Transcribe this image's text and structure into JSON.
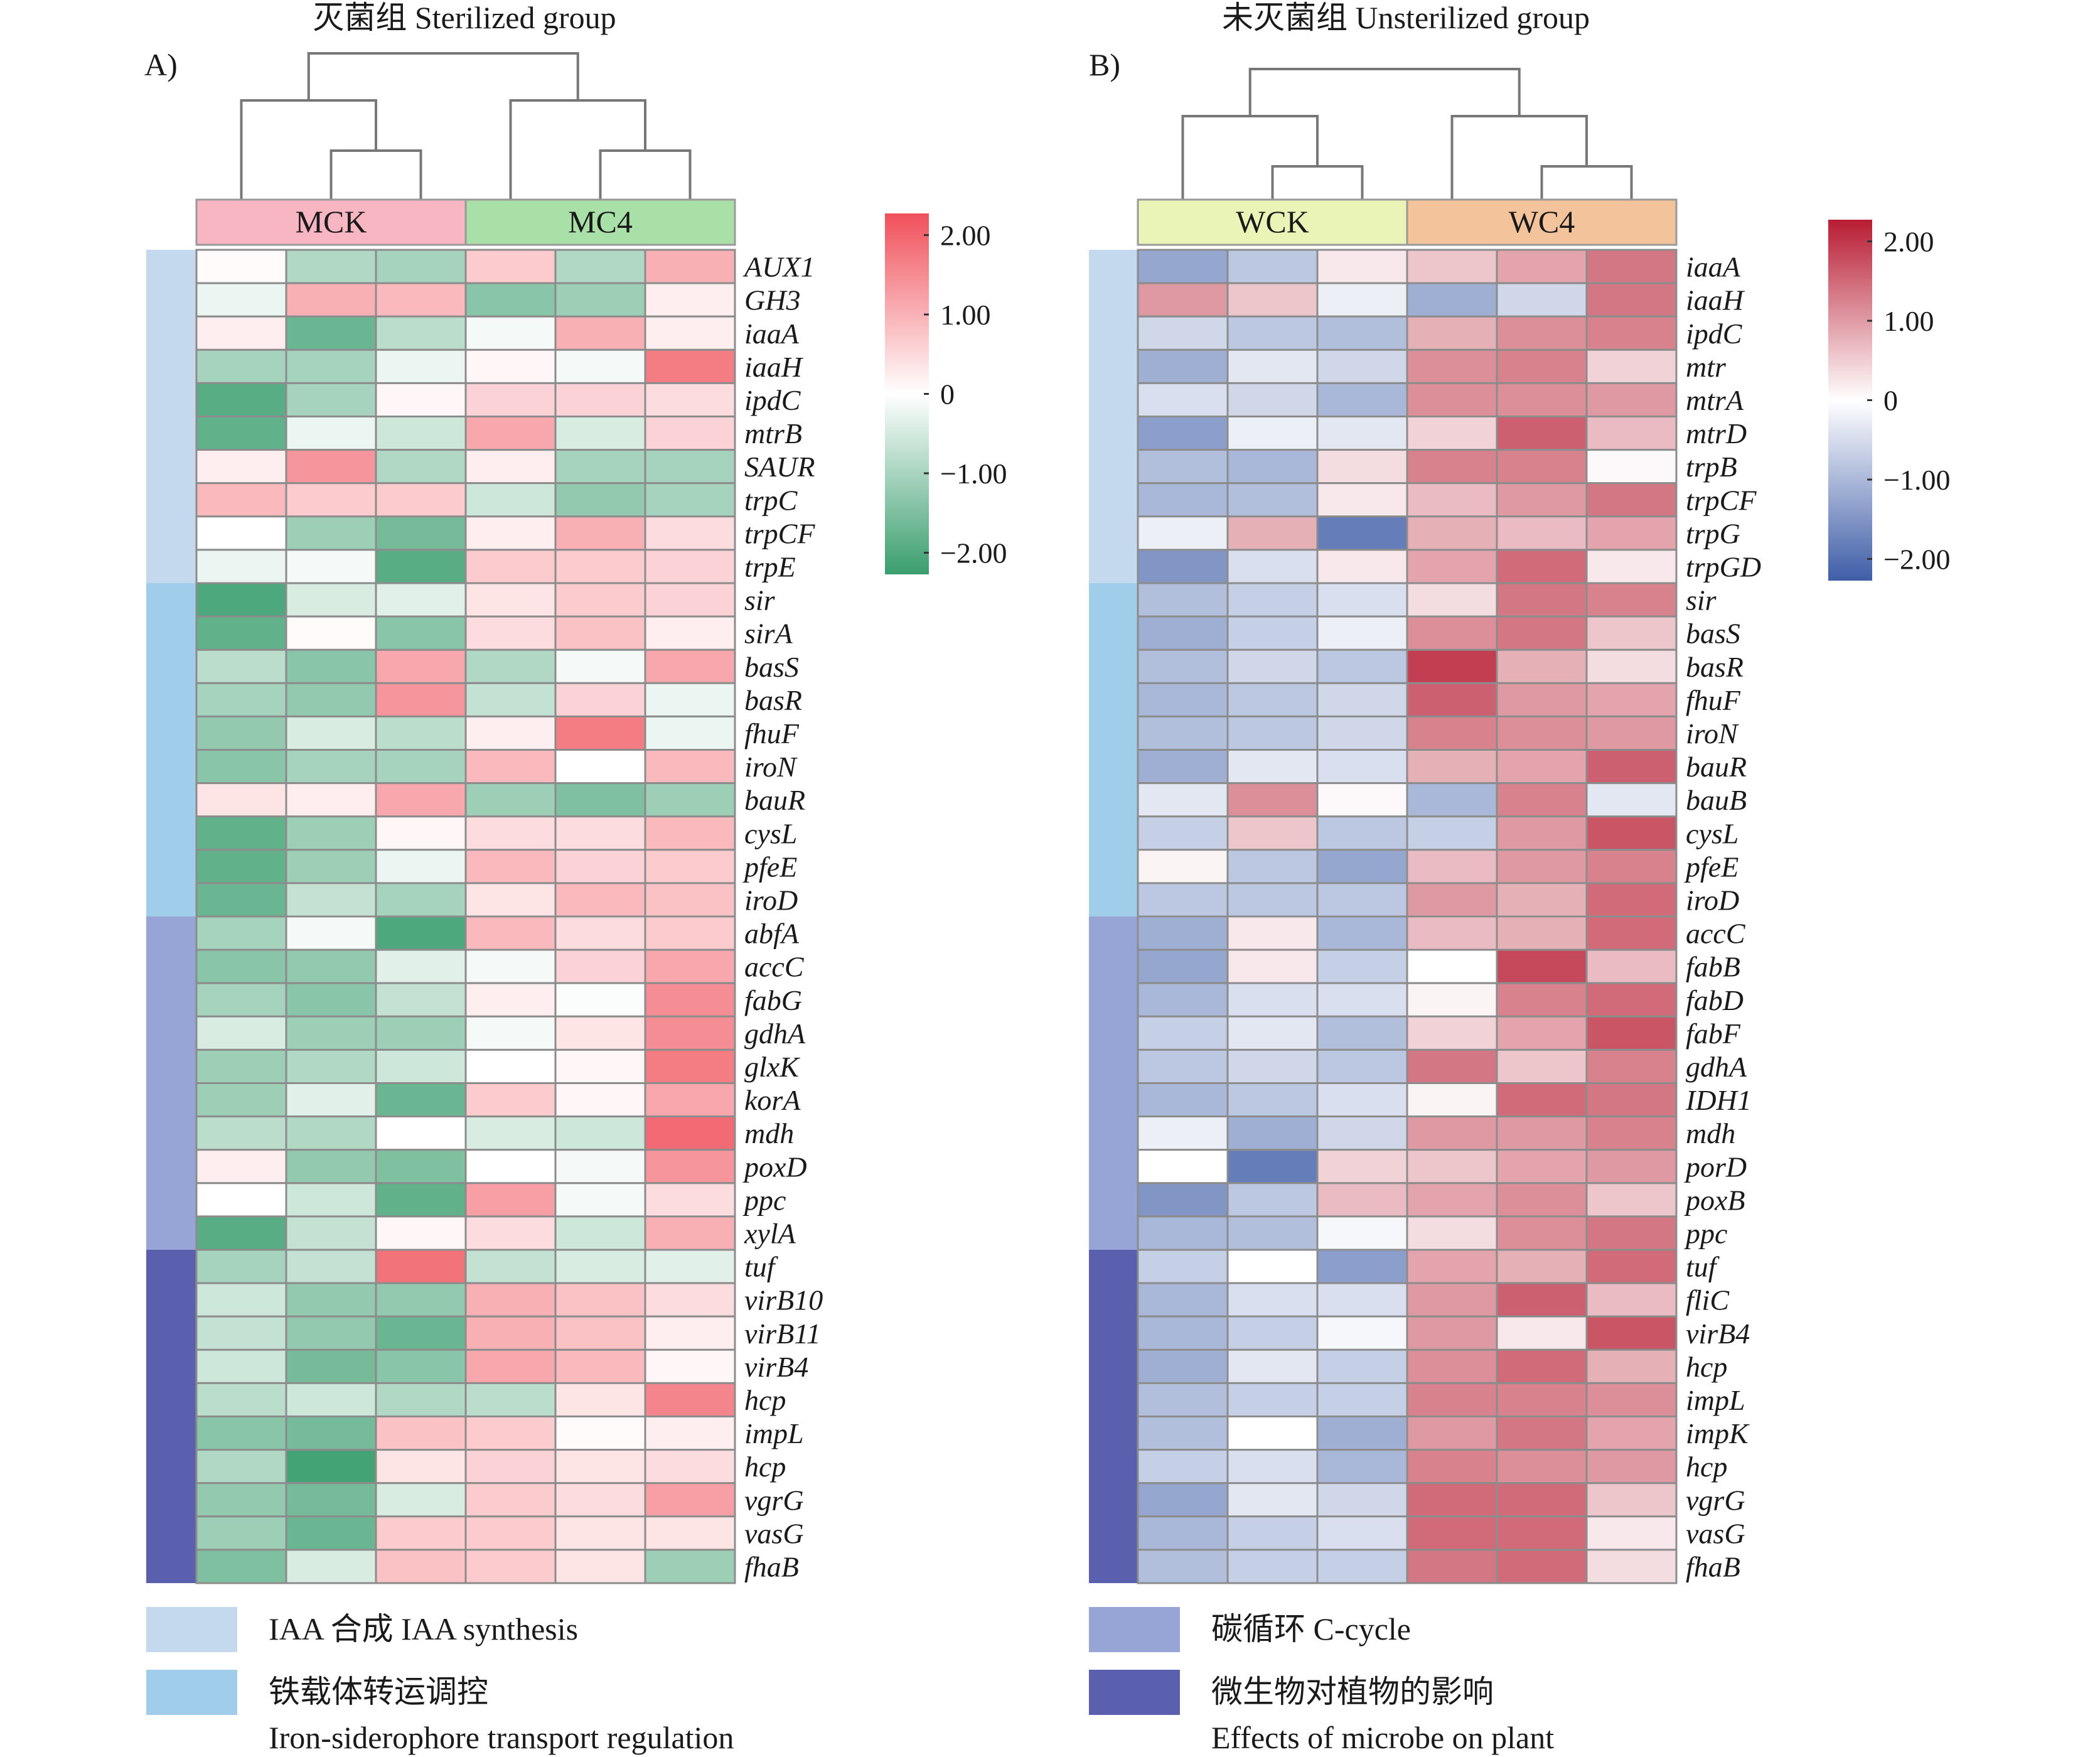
{
  "chart_data": [
    {
      "type": "heatmap",
      "panel_label": "A)",
      "title": "灭菌组 Sterilized group",
      "groups": [
        {
          "name": "MCK",
          "color": "#f7b6c2"
        },
        {
          "name": "MC4",
          "color": "#a8e0a8"
        }
      ],
      "colorbar": {
        "min": -2,
        "max": 2,
        "ticks": [
          "2.00",
          "1.00",
          "0",
          "−1.00",
          "−2.00"
        ],
        "low_color": "#3a9e6e",
        "mid_color": "#ffffff",
        "high_color": "#f0505a"
      },
      "genes": [
        "AUX1",
        "GH3",
        "iaaA",
        "iaaH",
        "ipdC",
        "mtrB",
        "SAUR",
        "trpC",
        "trpCF",
        "trpE",
        "sir",
        "sirA",
        "basS",
        "basR",
        "fhuF",
        "iroN",
        "bauR",
        "cysL",
        "pfeE",
        "iroD",
        "abfA",
        "accC",
        "fabG",
        "gdhA",
        "glxK",
        "korA",
        "mdh",
        "poxD",
        "ppc",
        "xylA",
        "tuf",
        "virB10",
        "virB11",
        "virB4",
        "hcp",
        "impL",
        "hcp",
        "vgrG",
        "vasG",
        "fhaB"
      ],
      "categories": [
        {
          "key": "iaa",
          "start": 0,
          "end": 10
        },
        {
          "key": "iron",
          "start": 10,
          "end": 20
        },
        {
          "key": "carbon",
          "start": 20,
          "end": 30
        },
        {
          "key": "plant",
          "start": 30,
          "end": 40
        }
      ],
      "values": [
        [
          0.05,
          -0.8,
          -0.9,
          0.6,
          -0.8,
          0.9
        ],
        [
          -0.2,
          0.9,
          0.8,
          -1.2,
          -1.0,
          0.2
        ],
        [
          0.2,
          -1.5,
          -0.7,
          -0.1,
          0.9,
          0.2
        ],
        [
          -0.9,
          -0.9,
          -0.2,
          0.1,
          -0.1,
          1.5
        ],
        [
          -1.7,
          -0.9,
          0.1,
          0.5,
          0.5,
          0.4
        ],
        [
          -1.6,
          -0.2,
          -0.5,
          1.0,
          -0.4,
          0.5
        ],
        [
          0.2,
          1.2,
          -0.8,
          0.2,
          -0.9,
          -0.9
        ],
        [
          0.8,
          0.6,
          0.6,
          -0.5,
          -1.1,
          -0.9
        ],
        [
          0.0,
          -1.0,
          -1.4,
          0.2,
          0.9,
          0.4
        ],
        [
          -0.2,
          -0.1,
          -1.7,
          0.6,
          0.6,
          0.5
        ],
        [
          -1.8,
          -0.4,
          -0.3,
          0.3,
          0.6,
          0.5
        ],
        [
          -1.6,
          0.05,
          -1.2,
          0.4,
          0.7,
          0.2
        ],
        [
          -0.7,
          -1.2,
          1.0,
          -0.8,
          -0.1,
          1.0
        ],
        [
          -0.9,
          -1.1,
          1.2,
          -0.6,
          0.5,
          -0.2
        ],
        [
          -1.1,
          -0.4,
          -0.7,
          0.2,
          1.5,
          -0.2
        ],
        [
          -1.2,
          -0.9,
          -0.9,
          0.8,
          0.0,
          0.8
        ],
        [
          0.3,
          0.2,
          1.0,
          -1.0,
          -1.3,
          -1.0
        ],
        [
          -1.6,
          -1.0,
          0.1,
          0.4,
          0.4,
          0.8
        ],
        [
          -1.6,
          -1.0,
          -0.2,
          0.8,
          0.5,
          0.6
        ],
        [
          -1.5,
          -0.6,
          -0.9,
          0.3,
          0.8,
          0.7
        ],
        [
          -0.9,
          -0.1,
          -1.8,
          0.8,
          0.4,
          0.6
        ],
        [
          -1.2,
          -1.1,
          -0.3,
          -0.1,
          0.5,
          1.0
        ],
        [
          -0.9,
          -1.2,
          -0.6,
          0.2,
          -0.05,
          1.3
        ],
        [
          -0.4,
          -1.0,
          -1.0,
          -0.1,
          0.3,
          1.3
        ],
        [
          -1.0,
          -0.8,
          -0.5,
          0.0,
          0.1,
          1.5
        ],
        [
          -1.0,
          -0.3,
          -1.5,
          0.6,
          0.1,
          1.0
        ],
        [
          -0.7,
          -0.8,
          0.0,
          -0.4,
          -0.5,
          1.7
        ],
        [
          0.2,
          -1.1,
          -1.3,
          0.0,
          -0.1,
          1.2
        ],
        [
          0.0,
          -0.5,
          -1.6,
          1.1,
          -0.1,
          0.4
        ],
        [
          -1.7,
          -0.6,
          0.1,
          0.4,
          -0.5,
          0.9
        ],
        [
          -0.9,
          -0.6,
          1.6,
          -0.6,
          -0.4,
          -0.3
        ],
        [
          -0.5,
          -1.1,
          -1.1,
          0.9,
          0.7,
          0.4
        ],
        [
          -0.6,
          -1.1,
          -1.5,
          0.9,
          0.7,
          0.2
        ],
        [
          -0.5,
          -1.4,
          -1.2,
          1.0,
          0.8,
          0.1
        ],
        [
          -0.7,
          -0.5,
          -0.8,
          -0.7,
          0.3,
          1.4
        ],
        [
          -1.2,
          -1.4,
          0.7,
          0.6,
          0.05,
          0.2
        ],
        [
          -0.8,
          -1.9,
          0.3,
          0.5,
          0.3,
          0.4
        ],
        [
          -1.1,
          -1.4,
          -0.4,
          0.6,
          0.4,
          1.1
        ],
        [
          -1.0,
          -1.5,
          0.6,
          0.6,
          0.3,
          0.3
        ],
        [
          -1.3,
          -0.4,
          0.7,
          0.6,
          0.3,
          -1.0
        ]
      ]
    },
    {
      "type": "heatmap",
      "panel_label": "B)",
      "title": "未灭菌组 Unsterilized group",
      "groups": [
        {
          "name": "WCK",
          "color": "#eaf4b6"
        },
        {
          "name": "WC4",
          "color": "#f3c49b"
        }
      ],
      "colorbar": {
        "min": -2,
        "max": 2,
        "ticks": [
          "2.00",
          "1.00",
          "0",
          "−1.00",
          "−2.00"
        ],
        "low_color": "#3f5ea8",
        "mid_color": "#ffffff",
        "high_color": "#b81c32"
      },
      "genes": [
        "iaaA",
        "iaaH",
        "ipdC",
        "mtr",
        "mtrA",
        "mtrD",
        "trpB",
        "trpCF",
        "trpG",
        "trpGD",
        "sir",
        "basS",
        "basR",
        "fhuF",
        "iroN",
        "bauR",
        "bauB",
        "cysL",
        "pfeE",
        "iroD",
        "accC",
        "fabB",
        "fabD",
        "fabF",
        "gdhA",
        "IDH1",
        "mdh",
        "porD",
        "poxB",
        "ppc",
        "tuf",
        "fliC",
        "virB4",
        "hcp",
        "impL",
        "impK",
        "hcp",
        "vgrG",
        "vasG",
        "fhaB"
      ],
      "categories": [
        {
          "key": "iaa",
          "start": 0,
          "end": 10
        },
        {
          "key": "iron",
          "start": 10,
          "end": 20
        },
        {
          "key": "carbon",
          "start": 20,
          "end": 30
        },
        {
          "key": "plant",
          "start": 30,
          "end": 40
        }
      ],
      "values": [
        [
          -1.1,
          -0.7,
          0.2,
          0.5,
          0.8,
          1.2
        ],
        [
          0.9,
          0.5,
          -0.2,
          -1.0,
          -0.5,
          1.2
        ],
        [
          -0.5,
          -0.7,
          -0.8,
          0.7,
          1.0,
          1.1
        ],
        [
          -1.0,
          -0.3,
          -0.5,
          1.0,
          1.1,
          0.4
        ],
        [
          -0.4,
          -0.5,
          -0.9,
          1.0,
          1.0,
          0.9
        ],
        [
          -1.2,
          -0.2,
          -0.3,
          0.4,
          1.4,
          0.6
        ],
        [
          -0.8,
          -0.9,
          0.3,
          1.1,
          1.1,
          0.05
        ],
        [
          -0.9,
          -0.8,
          0.2,
          0.6,
          0.9,
          1.2
        ],
        [
          -0.2,
          0.7,
          -1.6,
          0.7,
          0.6,
          0.8
        ],
        [
          -1.3,
          -0.4,
          0.2,
          0.8,
          1.3,
          0.2
        ],
        [
          -0.8,
          -0.6,
          -0.4,
          0.3,
          1.2,
          1.1
        ],
        [
          -1.0,
          -0.6,
          -0.2,
          1.0,
          1.2,
          0.5
        ],
        [
          -0.8,
          -0.5,
          -0.7,
          1.7,
          0.7,
          0.3
        ],
        [
          -0.9,
          -0.7,
          -0.5,
          1.4,
          0.9,
          0.8
        ],
        [
          -0.8,
          -0.7,
          -0.5,
          1.1,
          1.0,
          0.9
        ],
        [
          -1.0,
          -0.3,
          -0.4,
          0.7,
          0.8,
          1.4
        ],
        [
          -0.3,
          1.0,
          0.05,
          -0.9,
          1.1,
          -0.3
        ],
        [
          -0.6,
          0.5,
          -0.7,
          -0.6,
          0.9,
          1.5
        ],
        [
          0.1,
          -0.7,
          -1.1,
          0.6,
          0.9,
          1.1
        ],
        [
          -0.7,
          -0.7,
          -0.7,
          0.9,
          0.7,
          1.3
        ],
        [
          -1.0,
          0.2,
          -0.9,
          0.6,
          0.7,
          1.3
        ],
        [
          -1.1,
          0.2,
          -0.6,
          0.0,
          1.6,
          0.6
        ],
        [
          -0.9,
          -0.4,
          -0.4,
          0.1,
          1.1,
          1.3
        ],
        [
          -0.6,
          -0.3,
          -0.8,
          0.4,
          0.8,
          1.5
        ],
        [
          -0.7,
          -0.5,
          -0.7,
          1.2,
          0.5,
          1.1
        ],
        [
          -0.9,
          -0.7,
          -0.4,
          0.1,
          1.3,
          1.2
        ],
        [
          -0.2,
          -1.0,
          -0.5,
          0.9,
          0.9,
          1.1
        ],
        [
          0.0,
          -1.6,
          0.4,
          0.5,
          0.8,
          0.9
        ],
        [
          -1.3,
          -0.7,
          0.6,
          0.8,
          1.0,
          0.5
        ],
        [
          -0.9,
          -0.8,
          -0.1,
          0.3,
          1.0,
          1.2
        ],
        [
          -0.6,
          0.0,
          -1.2,
          0.8,
          0.7,
          1.3
        ],
        [
          -0.9,
          -0.4,
          -0.4,
          0.9,
          1.4,
          0.6
        ],
        [
          -0.9,
          -0.6,
          -0.1,
          0.9,
          0.2,
          1.5
        ],
        [
          -1.0,
          -0.3,
          -0.6,
          1.0,
          1.3,
          0.7
        ],
        [
          -0.8,
          -0.6,
          -0.6,
          1.1,
          1.1,
          1.0
        ],
        [
          -0.8,
          0.0,
          -1.0,
          0.9,
          1.2,
          0.8
        ],
        [
          -0.6,
          -0.4,
          -0.9,
          1.1,
          1.0,
          0.9
        ],
        [
          -1.1,
          -0.3,
          -0.5,
          1.3,
          1.3,
          0.5
        ],
        [
          -0.9,
          -0.6,
          -0.4,
          1.3,
          1.3,
          0.2
        ],
        [
          -0.8,
          -0.6,
          -0.6,
          1.2,
          1.3,
          0.3
        ]
      ]
    }
  ],
  "category_colors": {
    "iaa": "#c5d9ee",
    "iron": "#9fcdea",
    "carbon": "#96a4d6",
    "plant": "#5a5fae"
  },
  "legend": [
    {
      "key": "iaa",
      "text": "IAA 合成 IAA synthesis"
    },
    {
      "key": "iron",
      "text": "铁载体转运调控",
      "text2": "Iron-siderophore transport regulation"
    },
    {
      "key": "carbon",
      "text": "碳循环 C-cycle"
    },
    {
      "key": "plant",
      "text": "微生物对植物的影响",
      "text2": "Effects of microbe on plant"
    }
  ]
}
